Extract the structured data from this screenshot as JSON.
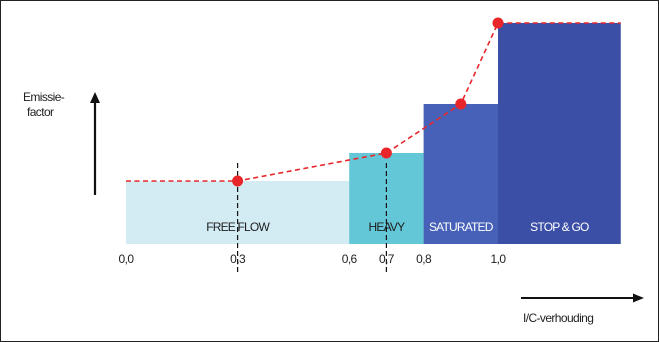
{
  "diagram": {
    "y_axis_label_line1": "Emissie-",
    "y_axis_label_line2": "factor",
    "x_axis_label": "I/C-verhouding",
    "zones": [
      {
        "label": "FREE FLOW",
        "from": 0.0,
        "to": 0.6,
        "level": 1,
        "color": "#d3ecf4",
        "text_color": "#1e1e1e"
      },
      {
        "label": "HEAVY",
        "from": 0.6,
        "to": 0.8,
        "level": 2,
        "color": "#63c7d8",
        "text_color": "#1e1e1e"
      },
      {
        "label": "SATURATED",
        "from": 0.8,
        "to": 1.0,
        "level": 3,
        "color": "#4661b7",
        "text_color": "#ffffff"
      },
      {
        "label": "STOP & GO",
        "from": 1.0,
        "to": 1.33,
        "level": 4,
        "color": "#3c4fa6",
        "text_color": "#ffffff"
      }
    ],
    "ticks": [
      "0,0",
      "0,3",
      "0,6",
      "0,7",
      "0,8",
      "1,0"
    ],
    "tick_values": [
      0.0,
      0.3,
      0.6,
      0.7,
      0.8,
      1.0
    ],
    "curve_points": [
      {
        "x": 0.0,
        "level": 1
      },
      {
        "x": 0.3,
        "level": 1
      },
      {
        "x": 0.7,
        "level": 2
      },
      {
        "x": 0.9,
        "level": 3
      },
      {
        "x": 1.0,
        "level": 4
      },
      {
        "x": 1.33,
        "level": 4
      }
    ],
    "marked_points": [
      0.3,
      0.7,
      0.9,
      1.0
    ],
    "reference_lines": [
      0.3,
      0.7
    ],
    "curve_color": "#e8262a"
  }
}
